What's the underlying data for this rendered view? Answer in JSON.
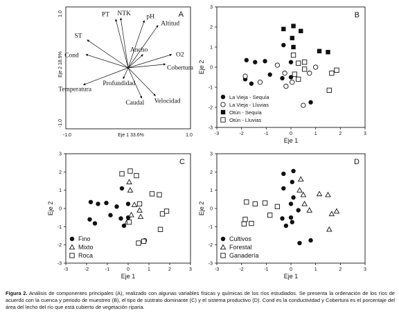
{
  "caption": {
    "label": "Figura 2.",
    "text": "Análisis de componentes principales (A), realizado con algunas variables físicas y químicas de los ríos estudiados. Se presenta la ordenación de los ríos de acuerdo con la cuenca y periodo de muestreo (B), el tipo de sustrato dominante (C) y el sistema productivo (D). Cond es la conductividad y Cobertura es el porcentaje del área del lecho del río que está cubierto de vegetación riparia."
  },
  "chart_data": [
    {
      "type": "biplot",
      "panel": "A",
      "xlabel": "Eje 1 33.6%",
      "ylabel": "Eje 2 18.9%",
      "xlim": [
        -1.0,
        1.0
      ],
      "ylim": [
        -1.0,
        1.0
      ],
      "xtick_labels": [
        "-1.0",
        "1.0"
      ],
      "ytick_labels": [
        "-1.0",
        "1.0"
      ],
      "grid": false,
      "vectors": [
        {
          "name": "PT",
          "x": -0.2,
          "y": 0.8
        },
        {
          "name": "NTK",
          "x": -0.12,
          "y": 0.82
        },
        {
          "name": "pH",
          "x": 0.26,
          "y": 0.78
        },
        {
          "name": "Altitud",
          "x": 0.48,
          "y": 0.7
        },
        {
          "name": "ST",
          "x": -0.66,
          "y": 0.46
        },
        {
          "name": "Cond",
          "x": -0.68,
          "y": 0.22
        },
        {
          "name": "Ancho",
          "x": 0.24,
          "y": 0.22
        },
        {
          "name": "O2",
          "x": 0.7,
          "y": 0.22
        },
        {
          "name": "Cobertura",
          "x": 0.6,
          "y": 0.06
        },
        {
          "name": "Profundidad",
          "x": -0.08,
          "y": -0.18
        },
        {
          "name": "Temperatura",
          "x": -0.72,
          "y": -0.28
        },
        {
          "name": "Caudal",
          "x": 0.22,
          "y": -0.5
        },
        {
          "name": "Velocidad",
          "x": 0.44,
          "y": -0.46
        }
      ]
    },
    {
      "type": "scatter",
      "panel": "B",
      "xlabel": "Eje 1",
      "ylabel": "Eje 2",
      "xlim": [
        -3,
        3
      ],
      "ylim": [
        -3,
        3
      ],
      "xticks": [
        -3,
        -2,
        -1,
        0,
        1,
        2,
        3
      ],
      "yticks": [
        -3,
        -2,
        -1,
        0,
        1,
        2,
        3
      ],
      "legend_position": "bottom-left",
      "series": [
        {
          "name": "La Vieja - Sequía",
          "marker": "filled-circle",
          "points": [
            [
              -1.8,
              0.35
            ],
            [
              -1.45,
              0.25
            ],
            [
              -1.05,
              0.3
            ],
            [
              -1.85,
              -0.6
            ],
            [
              -1.6,
              -0.82
            ],
            [
              -0.85,
              -0.37
            ],
            [
              -0.35,
              -0.55
            ],
            [
              -0.3,
              1.1
            ],
            [
              0.0,
              0.25
            ],
            [
              0.0,
              -0.5
            ],
            [
              0.8,
              -1.75
            ]
          ]
        },
        {
          "name": "La Vieja - Lluvias",
          "marker": "open-circle",
          "points": [
            [
              -1.85,
              -0.45
            ],
            [
              -1.25,
              -0.75
            ],
            [
              -0.25,
              -0.3
            ],
            [
              -0.2,
              -0.95
            ],
            [
              0.05,
              -0.75
            ],
            [
              0.5,
              -1.9
            ],
            [
              0.75,
              -0.3
            ],
            [
              1.0,
              0.0
            ],
            [
              -0.55,
              0.1
            ]
          ]
        },
        {
          "name": "Otún - Sequía",
          "marker": "filled-square",
          "points": [
            [
              -0.3,
              1.9
            ],
            [
              0.1,
              2.05
            ],
            [
              0.4,
              1.8
            ],
            [
              0.05,
              1.45
            ],
            [
              0.1,
              1.0
            ],
            [
              1.15,
              0.8
            ],
            [
              1.5,
              0.75
            ]
          ]
        },
        {
          "name": "Otún - Lluvias",
          "marker": "open-square",
          "points": [
            [
              0.1,
              0.6
            ],
            [
              0.3,
              0.2
            ],
            [
              0.55,
              -0.1
            ],
            [
              0.55,
              0.25
            ],
            [
              1.65,
              -0.3
            ],
            [
              1.85,
              -0.15
            ],
            [
              1.55,
              -1.15
            ],
            [
              0.15,
              -0.35
            ],
            [
              0.3,
              -0.6
            ]
          ]
        }
      ]
    },
    {
      "type": "scatter",
      "panel": "C",
      "xlabel": "Eje 1",
      "ylabel": "Eje 2",
      "xlim": [
        -3,
        3
      ],
      "ylim": [
        -3,
        3
      ],
      "xticks": [
        -3,
        -2,
        -1,
        0,
        1,
        2,
        3
      ],
      "yticks": [
        -3,
        -2,
        -1,
        0,
        1,
        2,
        3
      ],
      "legend_position": "bottom-left",
      "series": [
        {
          "name": "Fino",
          "marker": "filled-circle",
          "points": [
            [
              -1.8,
              0.35
            ],
            [
              -1.45,
              0.25
            ],
            [
              -1.05,
              0.3
            ],
            [
              -1.85,
              -0.6
            ],
            [
              -1.6,
              -0.82
            ],
            [
              -0.85,
              -0.37
            ],
            [
              -0.35,
              -0.55
            ],
            [
              -0.3,
              1.1
            ],
            [
              0.0,
              0.25
            ],
            [
              0.0,
              -0.5
            ],
            [
              0.8,
              -1.75
            ],
            [
              -0.55,
              0.1
            ],
            [
              -0.2,
              -0.95
            ]
          ]
        },
        {
          "name": "Mixto",
          "marker": "open-triangle",
          "points": [
            [
              0.05,
              1.45
            ],
            [
              0.1,
              1.0
            ],
            [
              0.3,
              0.2
            ],
            [
              0.55,
              -0.1
            ],
            [
              0.6,
              -0.45
            ],
            [
              0.15,
              -0.35
            ],
            [
              -0.05,
              -0.75
            ]
          ]
        },
        {
          "name": "Roca",
          "marker": "open-square",
          "points": [
            [
              -0.3,
              1.9
            ],
            [
              0.1,
              2.05
            ],
            [
              0.4,
              1.8
            ],
            [
              1.15,
              0.8
            ],
            [
              1.5,
              0.75
            ],
            [
              0.55,
              0.25
            ],
            [
              1.65,
              -0.3
            ],
            [
              1.85,
              -0.15
            ],
            [
              1.55,
              -1.15
            ],
            [
              0.5,
              -1.9
            ],
            [
              0.75,
              -1.8
            ],
            [
              0.05,
              -0.75
            ]
          ]
        }
      ]
    },
    {
      "type": "scatter",
      "panel": "D",
      "xlabel": "Eje 1",
      "ylabel": "Eje 2",
      "xlim": [
        -3,
        3
      ],
      "ylim": [
        -3,
        3
      ],
      "xticks": [
        -3,
        -2,
        -1,
        0,
        1,
        2,
        3
      ],
      "yticks": [
        -3,
        -2,
        -1,
        0,
        1,
        2,
        3
      ],
      "legend_position": "bottom-left",
      "series": [
        {
          "name": "Cultivos",
          "marker": "filled-circle",
          "points": [
            [
              -0.3,
              1.9
            ],
            [
              0.1,
              2.05
            ],
            [
              0.05,
              1.45
            ],
            [
              -0.3,
              1.1
            ],
            [
              0.0,
              0.25
            ],
            [
              -0.35,
              -0.55
            ],
            [
              -0.2,
              -0.95
            ],
            [
              0.0,
              -0.5
            ],
            [
              0.05,
              -0.75
            ],
            [
              0.3,
              -0.1
            ],
            [
              0.35,
              -1.9
            ],
            [
              0.8,
              -1.75
            ],
            [
              0.1,
              0.6
            ]
          ]
        },
        {
          "name": "Forestal",
          "marker": "open-triangle",
          "points": [
            [
              0.4,
              1.6
            ],
            [
              0.35,
              1.0
            ],
            [
              0.5,
              0.75
            ],
            [
              0.55,
              0.25
            ],
            [
              0.75,
              -0.1
            ],
            [
              1.15,
              0.8
            ],
            [
              1.5,
              0.75
            ],
            [
              1.65,
              -0.3
            ],
            [
              1.85,
              -0.15
            ],
            [
              1.55,
              -1.15
            ]
          ]
        },
        {
          "name": "Ganadería",
          "marker": "open-square",
          "points": [
            [
              -1.8,
              0.35
            ],
            [
              -1.45,
              0.25
            ],
            [
              -1.05,
              0.3
            ],
            [
              -1.85,
              -0.6
            ],
            [
              -1.6,
              -0.82
            ],
            [
              -0.85,
              -0.37
            ],
            [
              -0.55,
              0.1
            ],
            [
              -1.9,
              -0.85
            ]
          ]
        }
      ]
    }
  ]
}
